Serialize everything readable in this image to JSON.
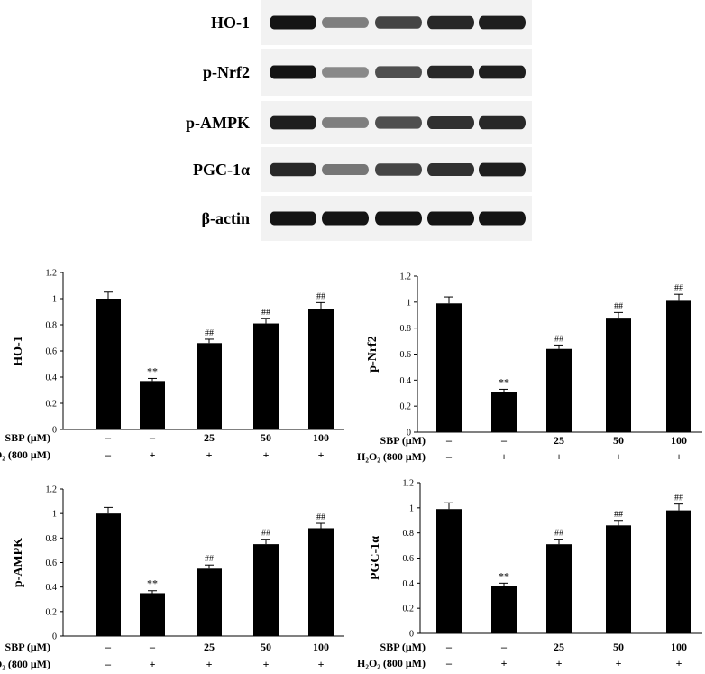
{
  "blot": {
    "rows": [
      {
        "label": "HO-1",
        "intensities": [
          1.0,
          0.45,
          0.75,
          0.9,
          0.95
        ]
      },
      {
        "label": "p-Nrf2",
        "intensities": [
          1.0,
          0.4,
          0.7,
          0.9,
          0.95
        ]
      },
      {
        "label": "p-AMPK",
        "intensities": [
          0.95,
          0.45,
          0.7,
          0.85,
          0.9
        ]
      },
      {
        "label": "PGC-1α",
        "intensities": [
          0.9,
          0.5,
          0.75,
          0.85,
          0.95
        ]
      },
      {
        "label": "β-actin",
        "intensities": [
          1.0,
          1.0,
          1.0,
          1.0,
          1.0
        ]
      }
    ]
  },
  "conditions": {
    "sbp_label": "SBP (μM)",
    "h2o2_label": "H₂O₂ (800 μM)",
    "sbp_values": [
      "–",
      "–",
      "25",
      "50",
      "100"
    ],
    "h2o2_values": [
      "–",
      "+",
      "+",
      "+",
      "+"
    ]
  },
  "chart_data": [
    {
      "type": "bar",
      "ylabel": "HO-1",
      "ylim": [
        0,
        1.2
      ],
      "yticks": [
        "0",
        "0.2",
        "0.4",
        "0.6",
        "0.8",
        "1",
        "1.2"
      ],
      "values": [
        1.0,
        0.37,
        0.66,
        0.81,
        0.92
      ],
      "errors": [
        0.05,
        0.02,
        0.03,
        0.04,
        0.05
      ],
      "annotations": [
        "",
        "**",
        "##",
        "##",
        "##"
      ]
    },
    {
      "type": "bar",
      "ylabel": "p-Nrf2",
      "ylim": [
        0,
        1.2
      ],
      "yticks": [
        "0",
        "0.2",
        "0.4",
        "0.6",
        "0.8",
        "1",
        "1.2"
      ],
      "values": [
        0.99,
        0.31,
        0.64,
        0.88,
        1.01
      ],
      "errors": [
        0.05,
        0.02,
        0.03,
        0.04,
        0.05
      ],
      "annotations": [
        "",
        "**",
        "##",
        "##",
        "##"
      ]
    },
    {
      "type": "bar",
      "ylabel": "p-AMPK",
      "ylim": [
        0,
        1.2
      ],
      "yticks": [
        "0",
        "0.2",
        "0.4",
        "0.6",
        "0.8",
        "1",
        "1.2"
      ],
      "values": [
        1.0,
        0.35,
        0.55,
        0.75,
        0.88
      ],
      "errors": [
        0.05,
        0.02,
        0.03,
        0.04,
        0.04
      ],
      "annotations": [
        "",
        "**",
        "##",
        "##",
        "##"
      ]
    },
    {
      "type": "bar",
      "ylabel": "PGC-1α",
      "ylim": [
        0,
        1.2
      ],
      "yticks": [
        "0",
        "0.2",
        "0.4",
        "0.6",
        "0.8",
        "1",
        "1.2"
      ],
      "values": [
        0.99,
        0.38,
        0.71,
        0.86,
        0.98
      ],
      "errors": [
        0.05,
        0.02,
        0.04,
        0.04,
        0.05
      ],
      "annotations": [
        "",
        "**",
        "##",
        "##",
        "##"
      ]
    }
  ]
}
